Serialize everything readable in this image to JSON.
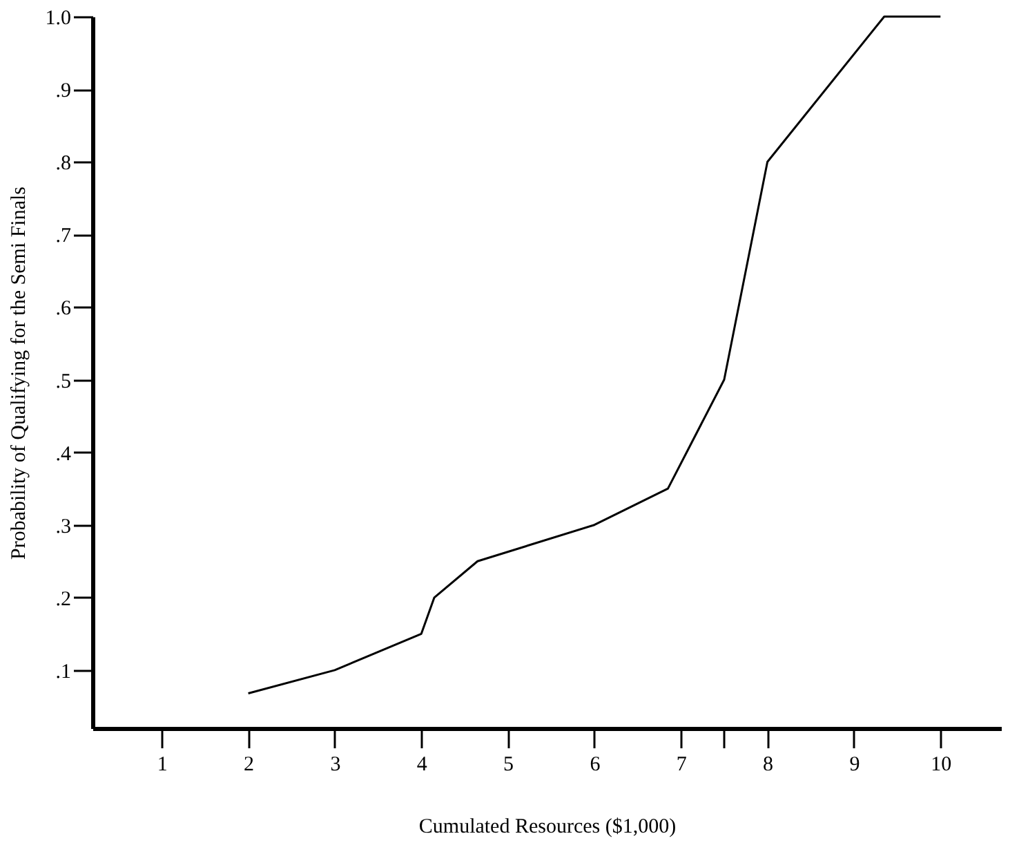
{
  "chart_data": {
    "type": "line",
    "xlabel": "Cumulated Resources ($1,000)",
    "ylabel": "Probability of Qualifying for the  Semi Finals",
    "x": [
      2,
      3,
      4,
      4.15,
      4.65,
      6,
      6.85,
      7.5,
      8,
      9.35,
      10
    ],
    "series": [
      {
        "color": "#000000",
        "values": [
          0.068,
          0.1,
          0.15,
          0.2,
          0.25,
          0.3,
          0.35,
          0.5,
          0.8,
          1.0,
          1.0
        ]
      }
    ],
    "xlim": [
      0.2,
      10.7
    ],
    "ylim": [
      0.02,
      1.0
    ],
    "xticks": [
      1,
      2,
      3,
      4,
      5,
      6,
      7,
      {
        "value": 7.5,
        "label": null
      },
      8,
      9,
      10
    ],
    "yticks": [
      {
        "value": 0.1,
        "label": ".1"
      },
      {
        "value": 0.2,
        "label": ".2"
      },
      {
        "value": 0.3,
        "label": ".3"
      },
      {
        "value": 0.4,
        "label": ".4"
      },
      {
        "value": 0.5,
        "label": ".5"
      },
      {
        "value": 0.6,
        "label": ".6"
      },
      {
        "value": 0.7,
        "label": ".7"
      },
      {
        "value": 0.8,
        "label": ".8"
      },
      {
        "value": 0.9,
        "label": ".9"
      },
      {
        "value": 1.0,
        "label": "1.0"
      }
    ],
    "grid": false,
    "marker": "none",
    "line_style": "solid"
  }
}
